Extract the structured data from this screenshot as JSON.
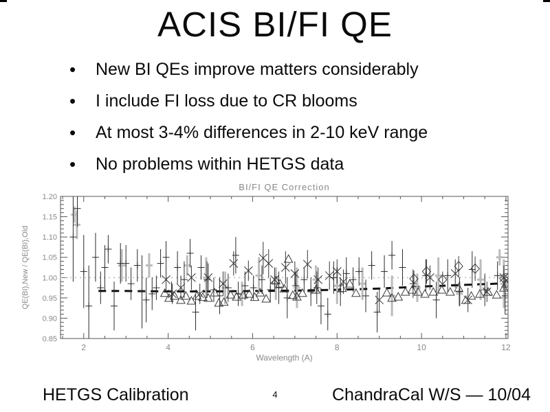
{
  "slide": {
    "title": "ACIS BI/FI QE",
    "bullet_glyph": "•",
    "bullets": [
      "New BI QEs improve matters considerably",
      "I include FI loss due to CR blooms",
      "At most 3-4% differences in 2-10 keV range",
      "No problems within HETGS data"
    ],
    "footer": {
      "left": "HETGS Calibration",
      "page": "4",
      "right": "ChandraCal W/S — 10/04"
    }
  },
  "colors": {
    "slide_text": "#0a0a0a",
    "plot_text": "#888888",
    "plot_frame": "#555555",
    "marker_dark": "#2a2a2a",
    "gray_series": "#bbbbbb",
    "dotted_line": "#c8c8c8",
    "dashed_line": "#111111"
  },
  "chart_data": {
    "type": "scatter",
    "title": "BI/FI QE Correction",
    "xlabel": "Wavelength (A)",
    "ylabel": "QE(BI),New / QE(BI),Old",
    "xlim": [
      1.45,
      12.05
    ],
    "ylim": [
      0.85,
      1.2
    ],
    "x_ticks": [
      2,
      4,
      6,
      8,
      10,
      12
    ],
    "x_minor_step": 0.5,
    "y_ticks": [
      0.85,
      0.9,
      0.95,
      1.0,
      1.05,
      1.1,
      1.15,
      1.2
    ],
    "y_minor_step": 0.01,
    "grid": false,
    "legend": "none",
    "reference_lines": {
      "dotted_gray_y": 1.0,
      "dashed_black_points": [
        [
          2.35,
          0.967
        ],
        [
          3.0,
          0.967
        ],
        [
          4.0,
          0.966
        ],
        [
          5.0,
          0.966
        ],
        [
          6.0,
          0.967
        ],
        [
          7.0,
          0.968
        ],
        [
          8.0,
          0.97
        ],
        [
          9.0,
          0.973
        ],
        [
          10.0,
          0.978
        ],
        [
          11.0,
          0.982
        ],
        [
          12.0,
          0.986
        ]
      ]
    },
    "series": [
      {
        "name": "old-correction-gray-errorbars",
        "marker": "hline",
        "color": "#bbbbbb",
        "points": [
          [
            1.78,
            1.155,
            0.02
          ],
          [
            1.84,
            1.13,
            0.035
          ],
          [
            2.9,
            1.03,
            0.04
          ],
          [
            3.55,
            1.03,
            0.03
          ],
          [
            4.45,
            1.03,
            0.025
          ],
          [
            4.9,
            1.0,
            0.05
          ],
          [
            5.35,
            0.975,
            0.04
          ],
          [
            5.75,
            0.96,
            0.03
          ],
          [
            6.15,
            1.005,
            0.045
          ],
          [
            6.55,
            0.985,
            0.04
          ],
          [
            7.05,
            0.975,
            0.05
          ],
          [
            7.5,
            0.995,
            0.035
          ],
          [
            8.0,
            0.98,
            0.045
          ],
          [
            8.6,
            0.985,
            0.04
          ],
          [
            9.3,
            0.955,
            0.05
          ],
          [
            9.9,
            0.975,
            0.035
          ],
          [
            10.4,
            1.005,
            0.045
          ],
          [
            10.9,
            0.96,
            0.03
          ],
          [
            11.4,
            0.995,
            0.05
          ],
          [
            11.85,
            1.05,
            0.02
          ],
          [
            11.95,
            0.985,
            0.06
          ]
        ]
      },
      {
        "name": "heg-plus-errorbars",
        "marker": "plus",
        "color": "#2a2a2a",
        "points": [
          [
            1.75,
            1.1,
            0.11
          ],
          [
            1.85,
            1.17,
            0.045
          ],
          [
            2.0,
            1.015,
            0.09
          ],
          [
            2.12,
            0.93,
            0.1
          ],
          [
            2.28,
            1.05,
            0.06
          ],
          [
            2.4,
            0.975,
            0.04
          ],
          [
            2.5,
            1.025,
            0.055
          ],
          [
            2.58,
            1.07,
            0.035
          ],
          [
            2.72,
            0.93,
            0.06
          ],
          [
            2.87,
            1.035,
            0.05
          ],
          [
            3.0,
            1.035,
            0.045
          ],
          [
            3.12,
            0.985,
            0.04
          ],
          [
            3.27,
            1.03,
            0.04
          ],
          [
            3.38,
            0.965,
            0.09
          ],
          [
            3.48,
            0.945,
            0.055
          ],
          [
            3.62,
            0.96,
            0.04
          ],
          [
            3.72,
            0.975,
            0.03
          ],
          [
            3.82,
            1.035,
            0.035
          ],
          [
            3.95,
            1.05,
            0.04
          ],
          [
            4.08,
            0.965,
            0.025
          ],
          [
            4.22,
            1.025,
            0.04
          ],
          [
            4.38,
            0.995,
            0.045
          ],
          [
            4.52,
            1.06,
            0.035
          ],
          [
            4.65,
            0.915,
            0.045
          ],
          [
            4.78,
            1.025,
            0.03
          ],
          [
            4.92,
            0.995,
            0.045
          ],
          [
            5.08,
            0.97,
            0.03
          ],
          [
            5.22,
            0.955,
            0.045
          ],
          [
            5.42,
            0.975,
            0.035
          ],
          [
            5.6,
            1.055,
            0.045
          ],
          [
            5.66,
            0.96,
            0.03
          ],
          [
            5.82,
            0.98,
            0.035
          ],
          [
            6.02,
            0.975,
            0.03
          ],
          [
            6.22,
            0.995,
            0.035
          ],
          [
            6.42,
            0.97,
            0.03
          ],
          [
            6.62,
            0.975,
            0.04
          ],
          [
            6.82,
            0.95,
            0.05
          ],
          [
            7.02,
            0.98,
            0.035
          ],
          [
            7.22,
            0.995,
            0.03
          ],
          [
            7.38,
            0.965,
            0.035
          ],
          [
            7.52,
            0.975,
            0.04
          ],
          [
            7.62,
            0.93,
            0.045
          ],
          [
            7.78,
            0.91,
            0.04
          ],
          [
            7.92,
            1.0,
            0.04
          ],
          [
            8.08,
            0.965,
            0.035
          ],
          [
            8.22,
            1.01,
            0.04
          ],
          [
            8.38,
            0.995,
            0.03
          ],
          [
            8.52,
            1.015,
            0.035
          ],
          [
            8.68,
            0.955,
            0.04
          ],
          [
            8.82,
            1.03,
            0.035
          ],
          [
            8.95,
            0.915,
            0.05
          ],
          [
            9.12,
            1.015,
            0.04
          ],
          [
            9.3,
            1.055,
            0.035
          ],
          [
            9.55,
            1.025,
            0.045
          ],
          [
            9.8,
            0.985,
            0.035
          ],
          [
            10.1,
            1.005,
            0.04
          ],
          [
            10.35,
            0.945,
            0.045
          ],
          [
            10.62,
            1.005,
            0.04
          ],
          [
            10.9,
            0.965,
            0.035
          ],
          [
            11.2,
            1.02,
            0.045
          ],
          [
            11.5,
            0.97,
            0.04
          ],
          [
            11.8,
            1.005,
            0.035
          ],
          [
            11.98,
            0.955,
            0.045
          ]
        ]
      },
      {
        "name": "meg-cross-errorbars",
        "marker": "x",
        "color": "#333333",
        "points": [
          [
            3.95,
            0.995,
            0.03
          ],
          [
            4.1,
            0.96,
            0.025
          ],
          [
            4.3,
            0.975,
            0.03
          ],
          [
            4.55,
            1.0,
            0.03
          ],
          [
            4.75,
            0.96,
            0.025
          ],
          [
            4.95,
            1.0,
            0.035
          ],
          [
            5.3,
            0.985,
            0.03
          ],
          [
            5.55,
            1.035,
            0.03
          ],
          [
            5.9,
            1.017,
            0.025
          ],
          [
            6.25,
            1.048,
            0.04
          ],
          [
            6.38,
            1.035,
            0.035
          ],
          [
            6.52,
            0.995,
            0.03
          ],
          [
            6.78,
            1.025,
            0.04
          ],
          [
            7.0,
            1.01,
            0.03
          ],
          [
            7.3,
            1.033,
            0.035
          ],
          [
            7.55,
            0.995,
            0.03
          ],
          [
            7.82,
            1.005,
            0.035
          ],
          [
            8.0,
            1.015,
            0.03
          ],
          [
            8.15,
            0.99,
            0.03
          ],
          [
            9.0,
            0.945,
            0.03
          ],
          [
            10.2,
            1.0,
            0.03
          ],
          [
            10.8,
            1.01,
            0.035
          ],
          [
            11.1,
            0.945,
            0.03
          ],
          [
            11.55,
            0.965,
            0.025
          ],
          [
            11.95,
            1.0,
            0.03
          ]
        ]
      },
      {
        "name": "fi-triangle",
        "marker": "triangle-open",
        "color": "#3a3a3a",
        "points": [
          [
            3.92,
            0.962
          ],
          [
            4.02,
            0.95
          ],
          [
            4.15,
            0.955
          ],
          [
            4.3,
            0.945
          ],
          [
            4.42,
            0.955
          ],
          [
            4.55,
            0.943
          ],
          [
            4.68,
            0.955
          ],
          [
            4.82,
            0.952
          ],
          [
            4.95,
            0.95
          ],
          [
            5.1,
            0.963
          ],
          [
            5.2,
            0.938
          ],
          [
            5.32,
            0.94
          ],
          [
            5.48,
            0.958
          ],
          [
            5.62,
            0.953
          ],
          [
            5.78,
            0.958
          ],
          [
            5.92,
            0.96
          ],
          [
            6.05,
            0.952
          ],
          [
            6.18,
            0.963
          ],
          [
            6.32,
            0.948
          ],
          [
            6.55,
            0.993
          ],
          [
            6.65,
            0.985
          ],
          [
            6.75,
            0.973
          ],
          [
            6.85,
            1.046
          ],
          [
            6.95,
            0.957
          ],
          [
            7.05,
            0.953
          ],
          [
            7.18,
            0.962
          ],
          [
            7.5,
            0.97
          ],
          [
            8.12,
            0.974
          ],
          [
            8.3,
            0.985
          ],
          [
            8.45,
            0.962
          ],
          [
            9.18,
            0.963
          ],
          [
            9.3,
            0.95
          ],
          [
            9.45,
            0.953
          ],
          [
            9.62,
            0.965
          ],
          [
            9.78,
            0.97
          ],
          [
            9.92,
            0.965
          ],
          [
            10.08,
            0.96
          ],
          [
            10.28,
            0.965
          ],
          [
            10.48,
            0.97
          ],
          [
            10.68,
            0.965
          ],
          [
            10.88,
            0.975
          ],
          [
            11.05,
            0.945
          ],
          [
            11.18,
            0.955
          ],
          [
            11.38,
            0.96
          ],
          [
            11.58,
            0.965
          ],
          [
            11.78,
            0.958
          ],
          [
            11.95,
            0.975
          ],
          [
            12.0,
            0.985
          ]
        ]
      },
      {
        "name": "diamond-points",
        "marker": "diamond-open",
        "color": "#3a3a3a",
        "points": [
          [
            9.82,
            0.997,
            0.02
          ],
          [
            10.12,
            1.015,
            0.03
          ],
          [
            10.5,
            0.995,
            0.02
          ],
          [
            10.88,
            1.028,
            0.025
          ],
          [
            11.27,
            1.022,
            0.03
          ],
          [
            11.95,
            0.998,
            0.02
          ]
        ]
      }
    ]
  }
}
